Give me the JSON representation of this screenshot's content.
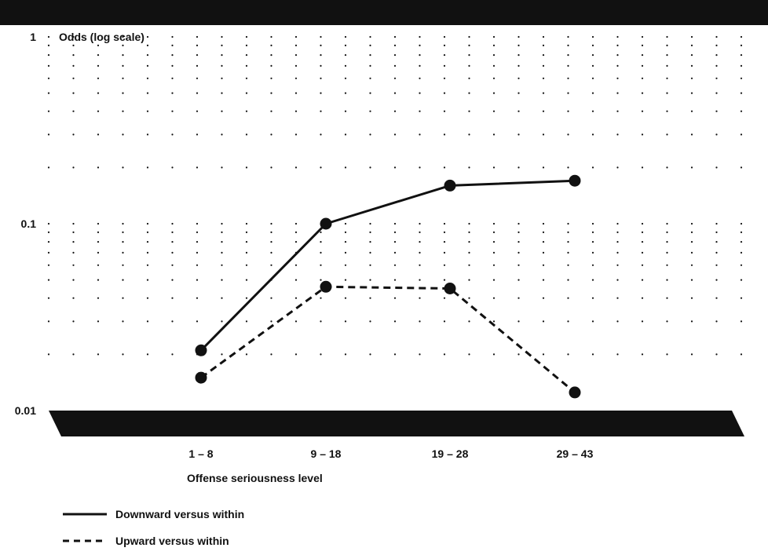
{
  "chart_data": {
    "type": "line",
    "yscale": "log",
    "ylim": [
      0.01,
      1
    ],
    "yticks": [
      {
        "value": 1,
        "label": "1"
      },
      {
        "value": 0.1,
        "label": "0.1"
      },
      {
        "value": 0.01,
        "label": "0.01"
      }
    ],
    "ylabel": "Odds (log scale)",
    "xlabel": "Offense seriousness level",
    "categories": [
      "1 – 8",
      "9 – 18",
      "19 – 28",
      "29 – 43"
    ],
    "grid": true,
    "legend_position": "bottom-left",
    "series": [
      {
        "name": "Downward versus within",
        "style": "solid",
        "values": [
          0.021,
          0.1,
          0.16,
          0.17
        ]
      },
      {
        "name": "Upward versus within",
        "style": "dashed",
        "values": [
          0.015,
          0.046,
          0.045,
          0.0125
        ]
      }
    ]
  },
  "colors": {
    "ink": "#111111",
    "background": "#ffffff"
  }
}
